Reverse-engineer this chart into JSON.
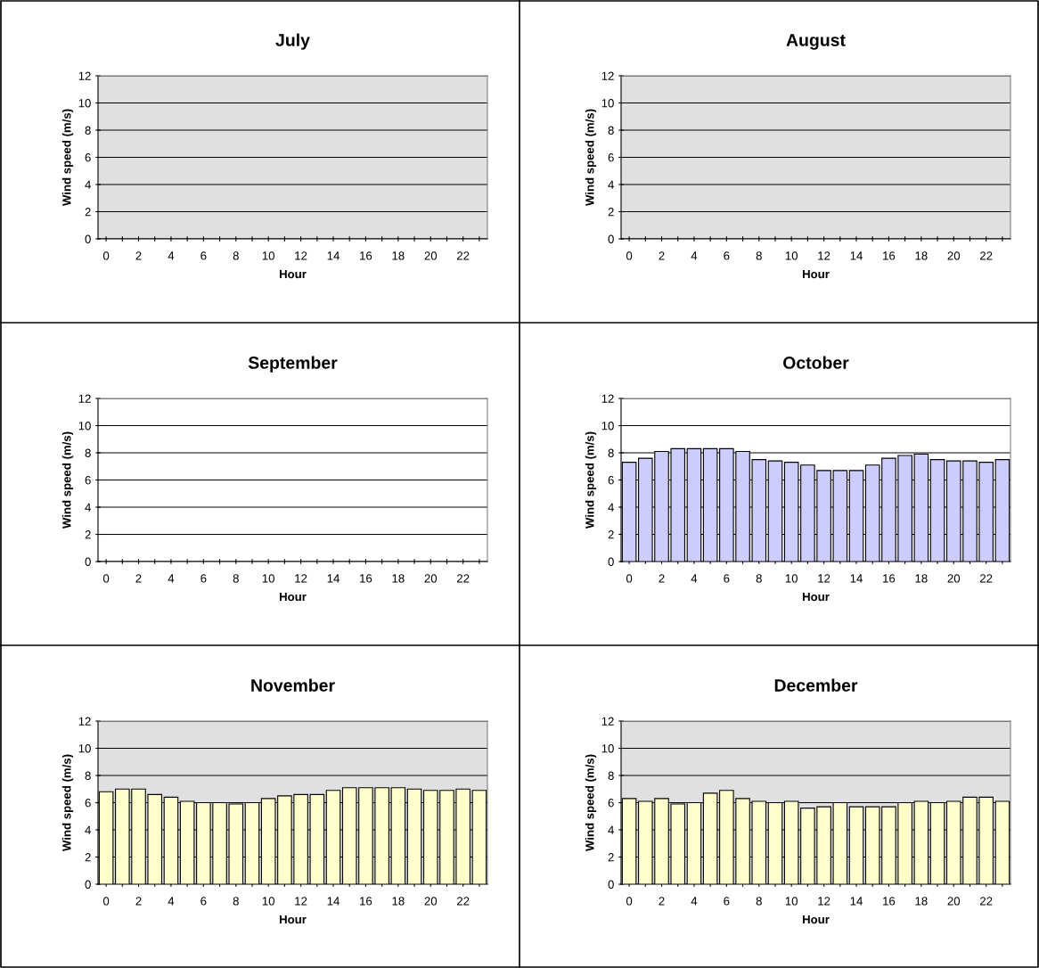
{
  "chart_data": [
    {
      "type": "bar",
      "bands": [
        {
          "axis": "y",
          "from": 0,
          "to": 12,
          "color": "#e0e0e0"
        }
      ],
      "title": "July",
      "xlabel": "Hour",
      "ylabel": "Wind speed (m/s)",
      "categories": [
        "0",
        null,
        "2",
        null,
        "4",
        null,
        "6",
        null,
        "8",
        null,
        "10",
        null,
        "12",
        null,
        "14",
        null,
        "16",
        null,
        "18",
        null,
        "20",
        null,
        "22",
        null
      ],
      "values": [
        null,
        null,
        null,
        null,
        null,
        null,
        null,
        null,
        null,
        null,
        null,
        null,
        null,
        null,
        null,
        null,
        null,
        null,
        null,
        null,
        null,
        null,
        null,
        null
      ],
      "ylim": [
        0,
        12
      ],
      "yticks": [
        0,
        2,
        4,
        6,
        8,
        10,
        12
      ],
      "grid": "y",
      "legend": false
    },
    {
      "type": "bar",
      "bands": [
        {
          "axis": "y",
          "from": 0,
          "to": 12,
          "color": "#e0e0e0"
        }
      ],
      "title": "August",
      "xlabel": "Hour",
      "ylabel": "Wind speed (m/s)",
      "categories": [
        "0",
        null,
        "2",
        null,
        "4",
        null,
        "6",
        null,
        "8",
        null,
        "10",
        null,
        "12",
        null,
        "14",
        null,
        "16",
        null,
        "18",
        null,
        "20",
        null,
        "22",
        null
      ],
      "values": [
        null,
        null,
        null,
        null,
        null,
        null,
        null,
        null,
        null,
        null,
        null,
        null,
        null,
        null,
        null,
        null,
        null,
        null,
        null,
        null,
        null,
        null,
        null,
        null
      ],
      "ylim": [
        0,
        12
      ],
      "yticks": [
        0,
        2,
        4,
        6,
        8,
        10,
        12
      ],
      "grid": "y",
      "legend": false
    },
    {
      "type": "bar",
      "title": "September",
      "xlabel": "Hour",
      "ylabel": "Wind speed (m/s)",
      "categories": [
        "0",
        null,
        "2",
        null,
        "4",
        null,
        "6",
        null,
        "8",
        null,
        "10",
        null,
        "12",
        null,
        "14",
        null,
        "16",
        null,
        "18",
        null,
        "20",
        null,
        "22",
        null
      ],
      "values": [
        null,
        null,
        null,
        null,
        null,
        null,
        null,
        null,
        null,
        null,
        null,
        null,
        null,
        null,
        null,
        null,
        null,
        null,
        null,
        null,
        null,
        null,
        null,
        null
      ],
      "ylim": [
        0,
        12
      ],
      "yticks": [
        0,
        2,
        4,
        6,
        8,
        10,
        12
      ],
      "grid": "y",
      "legend": false
    },
    {
      "type": "bar",
      "title": "October",
      "xlabel": "Hour",
      "ylabel": "Wind speed (m/s)",
      "categories": [
        "0",
        null,
        "2",
        null,
        "4",
        null,
        "6",
        null,
        "8",
        null,
        "10",
        null,
        "12",
        null,
        "14",
        null,
        "16",
        null,
        "18",
        null,
        "20",
        null,
        "22",
        null
      ],
      "values": [
        7.3,
        7.6,
        8.1,
        8.3,
        8.3,
        8.3,
        8.3,
        8.1,
        7.5,
        7.4,
        7.3,
        7.1,
        6.7,
        6.7,
        6.7,
        7.1,
        7.6,
        7.8,
        7.9,
        7.5,
        7.4,
        7.4,
        7.3,
        7.5
      ],
      "color": "#ccccff",
      "ylim": [
        0,
        12
      ],
      "yticks": [
        0,
        2,
        4,
        6,
        8,
        10,
        12
      ],
      "grid": "y",
      "legend": false
    },
    {
      "type": "bar",
      "bands": [
        {
          "axis": "y",
          "from": 0,
          "to": 12,
          "color": "#e0e0e0"
        }
      ],
      "title": "November",
      "xlabel": "Hour",
      "ylabel": "Wind speed (m/s)",
      "categories": [
        "0",
        null,
        "2",
        null,
        "4",
        null,
        "6",
        null,
        "8",
        null,
        "10",
        null,
        "12",
        null,
        "14",
        null,
        "16",
        null,
        "18",
        null,
        "20",
        null,
        "22",
        null
      ],
      "values": [
        6.8,
        7.0,
        7.0,
        6.6,
        6.4,
        6.1,
        6.0,
        6.0,
        5.9,
        6.0,
        6.3,
        6.5,
        6.6,
        6.6,
        6.9,
        7.1,
        7.1,
        7.1,
        7.1,
        7.0,
        6.9,
        6.9,
        7.0,
        6.9
      ],
      "color": "#ffffcc",
      "ylim": [
        0,
        12
      ],
      "yticks": [
        0,
        2,
        4,
        6,
        8,
        10,
        12
      ],
      "grid": "y",
      "legend": false
    },
    {
      "type": "bar",
      "bands": [
        {
          "axis": "y",
          "from": 0,
          "to": 12,
          "color": "#e0e0e0"
        }
      ],
      "title": "December",
      "xlabel": "Hour",
      "ylabel": "Wind speed (m/s)",
      "categories": [
        "0",
        null,
        "2",
        null,
        "4",
        null,
        "6",
        null,
        "8",
        null,
        "10",
        null,
        "12",
        null,
        "14",
        null,
        "16",
        null,
        "18",
        null,
        "20",
        null,
        "22",
        null
      ],
      "values": [
        6.3,
        6.1,
        6.3,
        5.9,
        6.0,
        6.7,
        6.9,
        6.3,
        6.1,
        6.0,
        6.1,
        5.6,
        5.7,
        6.0,
        5.7,
        5.7,
        5.7,
        6.0,
        6.1,
        6.0,
        6.1,
        6.4,
        6.4,
        6.1
      ],
      "color": "#ffffcc",
      "ylim": [
        0,
        12
      ],
      "yticks": [
        0,
        2,
        4,
        6,
        8,
        10,
        12
      ],
      "grid": "y",
      "legend": false
    }
  ]
}
